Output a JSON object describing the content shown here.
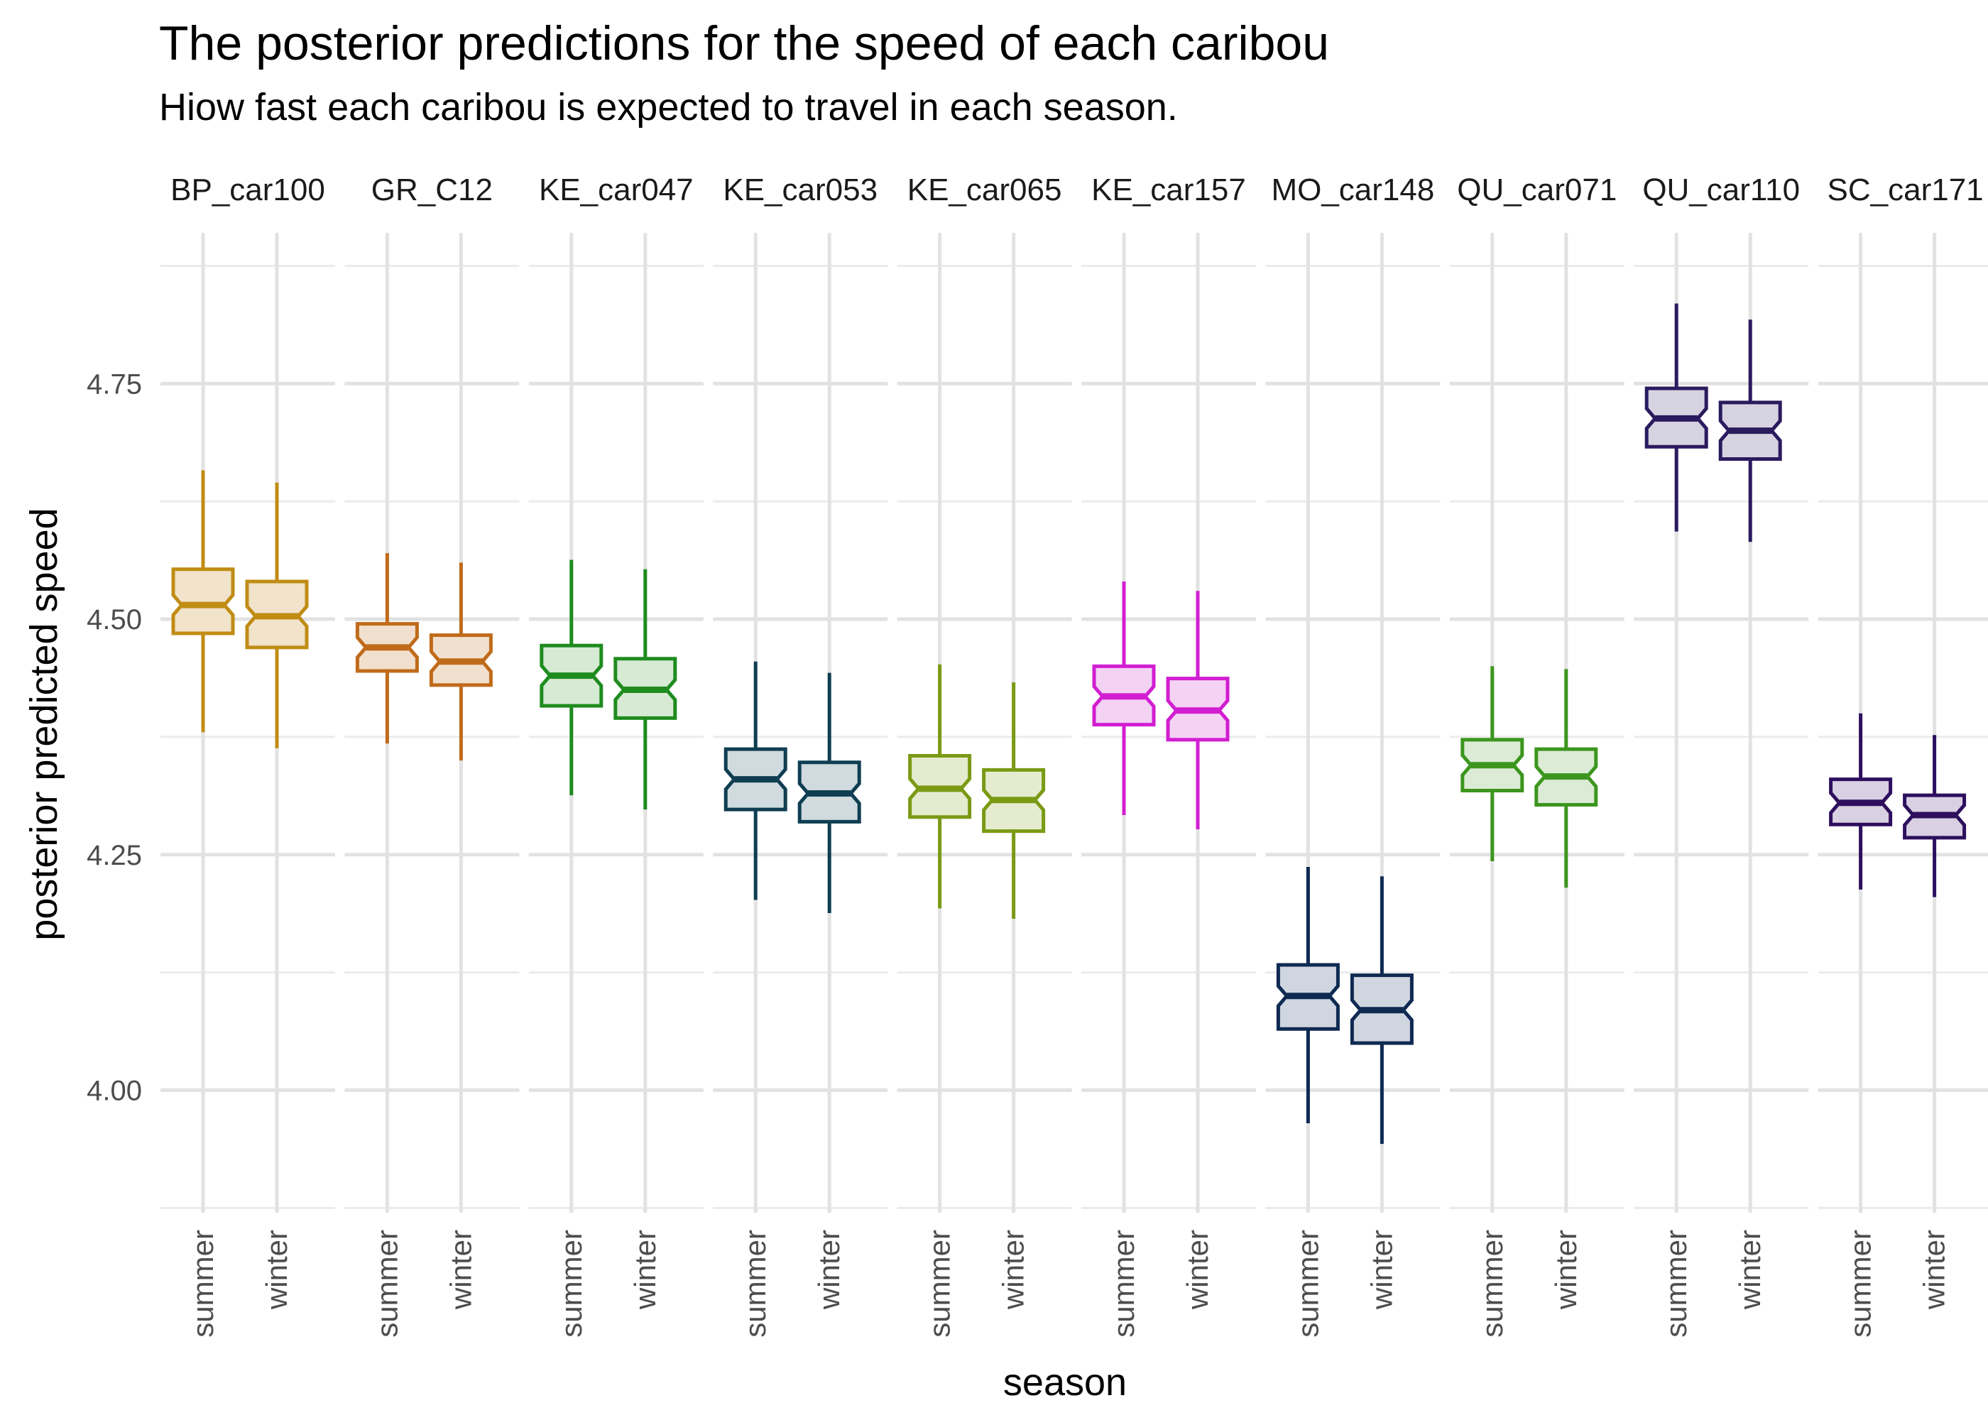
{
  "chart_data": {
    "type": "boxplot",
    "title": "The posterior predictions for the speed of each caribou",
    "subtitle": "Hiow fast each caribou is expected to travel in each season.",
    "xlabel": "season",
    "ylabel": "posterior predicted speed",
    "ylim": [
      3.87,
      4.91
    ],
    "yticks": [
      4.0,
      4.25,
      4.5,
      4.75
    ],
    "ytick_labels": [
      "4.00",
      "4.25",
      "4.50",
      "4.75"
    ],
    "grid": true,
    "legend": "none",
    "categories": [
      "summer",
      "winter"
    ],
    "panels": [
      {
        "label": "BP_car100",
        "color": "#C08C14",
        "fill": "#F2E3CB",
        "summer": {
          "low": 4.38,
          "q1": 4.485,
          "median": 4.515,
          "q3": 4.553,
          "high": 4.658
        },
        "winter": {
          "low": 4.363,
          "q1": 4.47,
          "median": 4.503,
          "q3": 4.54,
          "high": 4.645
        }
      },
      {
        "label": "GR_C12",
        "color": "#C06B1A",
        "fill": "#F2E0CE",
        "summer": {
          "low": 4.368,
          "q1": 4.445,
          "median": 4.47,
          "q3": 4.495,
          "high": 4.57
        },
        "winter": {
          "low": 4.35,
          "q1": 4.43,
          "median": 4.455,
          "q3": 4.483,
          "high": 4.56
        }
      },
      {
        "label": "KE_car047",
        "color": "#1E8C1E",
        "fill": "#D6EAD4",
        "summer": {
          "low": 4.313,
          "q1": 4.408,
          "median": 4.44,
          "q3": 4.472,
          "high": 4.563
        },
        "winter": {
          "low": 4.298,
          "q1": 4.395,
          "median": 4.425,
          "q3": 4.458,
          "high": 4.553
        }
      },
      {
        "label": "KE_car053",
        "color": "#0F3E52",
        "fill": "#D0DADF",
        "summer": {
          "low": 4.202,
          "q1": 4.298,
          "median": 4.33,
          "q3": 4.362,
          "high": 4.455
        },
        "winter": {
          "low": 4.188,
          "q1": 4.285,
          "median": 4.315,
          "q3": 4.348,
          "high": 4.443
        }
      },
      {
        "label": "KE_car065",
        "color": "#7A9A14",
        "fill": "#E5EBCF",
        "summer": {
          "low": 4.193,
          "q1": 4.29,
          "median": 4.32,
          "q3": 4.355,
          "high": 4.452
        },
        "winter": {
          "low": 4.182,
          "q1": 4.275,
          "median": 4.308,
          "q3": 4.34,
          "high": 4.433
        }
      },
      {
        "label": "KE_car157",
        "color": "#D21ED2",
        "fill": "#F4D2F4",
        "summer": {
          "low": 4.292,
          "q1": 4.388,
          "median": 4.418,
          "q3": 4.45,
          "high": 4.54
        },
        "winter": {
          "low": 4.277,
          "q1": 4.372,
          "median": 4.403,
          "q3": 4.437,
          "high": 4.53
        }
      },
      {
        "label": "MO_car148",
        "color": "#0F2A52",
        "fill": "#D0D6E0",
        "summer": {
          "low": 3.965,
          "q1": 4.065,
          "median": 4.1,
          "q3": 4.133,
          "high": 4.237
        },
        "winter": {
          "low": 3.943,
          "q1": 4.05,
          "median": 4.085,
          "q3": 4.122,
          "high": 4.227
        }
      },
      {
        "label": "QU_car071",
        "color": "#3C961E",
        "fill": "#DCEBD5",
        "summer": {
          "low": 4.243,
          "q1": 4.318,
          "median": 4.345,
          "q3": 4.372,
          "high": 4.45
        },
        "winter": {
          "low": 4.215,
          "q1": 4.303,
          "median": 4.333,
          "q3": 4.362,
          "high": 4.447
        }
      },
      {
        "label": "QU_car110",
        "color": "#2A1A5E",
        "fill": "#D6D3E1",
        "summer": {
          "low": 4.593,
          "q1": 4.683,
          "median": 4.713,
          "q3": 4.745,
          "high": 4.835
        },
        "winter": {
          "low": 4.582,
          "q1": 4.67,
          "median": 4.7,
          "q3": 4.73,
          "high": 4.818
        }
      },
      {
        "label": "SC_car171",
        "color": "#2E0F5E",
        "fill": "#D9D1E3",
        "summer": {
          "low": 4.213,
          "q1": 4.282,
          "median": 4.305,
          "q3": 4.33,
          "high": 4.4
        },
        "winter": {
          "low": 4.205,
          "q1": 4.268,
          "median": 4.292,
          "q3": 4.313,
          "high": 4.377
        }
      }
    ]
  }
}
